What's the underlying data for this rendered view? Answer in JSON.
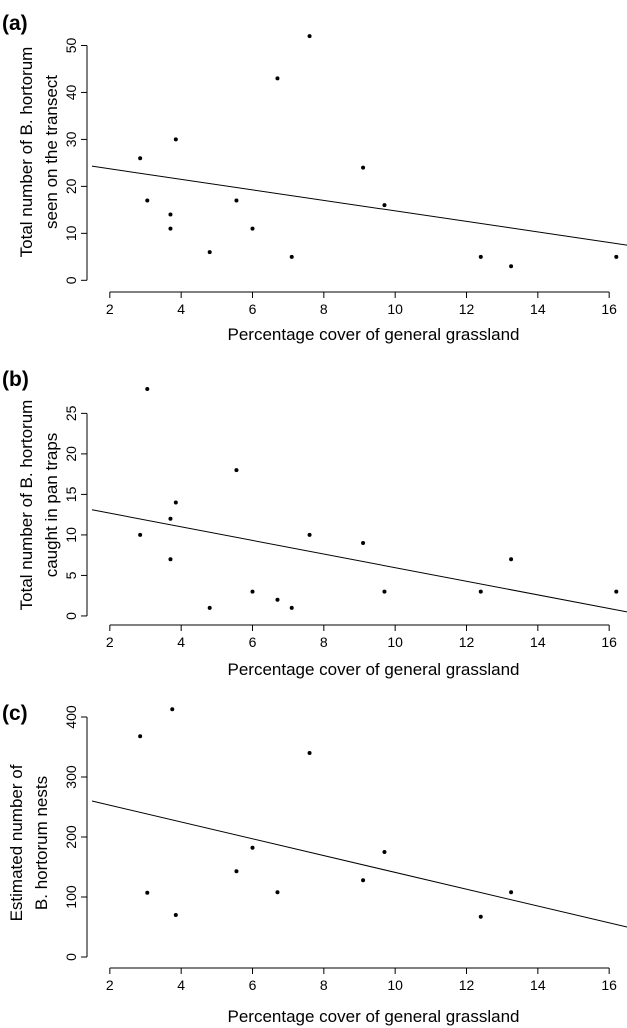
{
  "chart_data": [
    {
      "type": "scatter",
      "panel_label": "(a)",
      "xlabel": "Percentage cover of general grassland",
      "ylabel_lines": [
        "Total number of B. hortorum",
        "seen on the transect"
      ],
      "xlim": [
        1.5,
        16.5
      ],
      "ylim": [
        -1,
        55
      ],
      "x_ticks": [
        2,
        4,
        6,
        8,
        10,
        12,
        14,
        16
      ],
      "y_ticks": [
        0,
        10,
        20,
        30,
        40,
        50
      ],
      "points": [
        {
          "x": 2.85,
          "y": 26
        },
        {
          "x": 3.05,
          "y": 17
        },
        {
          "x": 3.7,
          "y": 14
        },
        {
          "x": 3.7,
          "y": 11
        },
        {
          "x": 3.85,
          "y": 30
        },
        {
          "x": 4.8,
          "y": 6
        },
        {
          "x": 5.55,
          "y": 17
        },
        {
          "x": 6.0,
          "y": 11
        },
        {
          "x": 6.7,
          "y": 43
        },
        {
          "x": 7.1,
          "y": 5
        },
        {
          "x": 7.6,
          "y": 52
        },
        {
          "x": 9.1,
          "y": 24
        },
        {
          "x": 9.7,
          "y": 16
        },
        {
          "x": 12.4,
          "y": 5
        },
        {
          "x": 13.25,
          "y": 3
        },
        {
          "x": 16.2,
          "y": 5
        }
      ],
      "fit_line": [
        {
          "x": 1.5,
          "y": 24.3
        },
        {
          "x": 16.5,
          "y": 7.5
        }
      ]
    },
    {
      "type": "scatter",
      "panel_label": "(b)",
      "xlabel": "Percentage cover of general grassland",
      "ylabel_lines": [
        "Total number of B. hortorum",
        "caught in pan traps"
      ],
      "xlim": [
        1.5,
        16.5
      ],
      "ylim": [
        -0.5,
        28.5
      ],
      "x_ticks": [
        2,
        4,
        6,
        8,
        10,
        12,
        14,
        16
      ],
      "y_ticks": [
        0,
        5,
        10,
        15,
        20,
        25
      ],
      "points": [
        {
          "x": 2.85,
          "y": 10
        },
        {
          "x": 3.05,
          "y": 28
        },
        {
          "x": 3.7,
          "y": 12
        },
        {
          "x": 3.7,
          "y": 7
        },
        {
          "x": 3.85,
          "y": 14
        },
        {
          "x": 4.8,
          "y": 1
        },
        {
          "x": 5.55,
          "y": 18
        },
        {
          "x": 6.0,
          "y": 3
        },
        {
          "x": 6.7,
          "y": 2
        },
        {
          "x": 7.1,
          "y": 1
        },
        {
          "x": 7.6,
          "y": 10
        },
        {
          "x": 9.1,
          "y": 9
        },
        {
          "x": 9.7,
          "y": 3
        },
        {
          "x": 12.4,
          "y": 3
        },
        {
          "x": 13.25,
          "y": 7
        },
        {
          "x": 16.2,
          "y": 3
        }
      ],
      "fit_line": [
        {
          "x": 1.5,
          "y": 13.1
        },
        {
          "x": 16.5,
          "y": 0.5
        }
      ]
    },
    {
      "type": "scatter",
      "panel_label": "(c)",
      "xlabel": "Percentage cover of general grassland",
      "ylabel_lines": [
        "Estimated number of",
        "B. hortorum nests"
      ],
      "xlim": [
        1.5,
        16.5
      ],
      "ylim": [
        -10,
        420
      ],
      "x_ticks": [
        2,
        4,
        6,
        8,
        10,
        12,
        14,
        16
      ],
      "y_ticks": [
        0,
        100,
        200,
        300,
        400
      ],
      "points": [
        {
          "x": 2.85,
          "y": 368
        },
        {
          "x": 3.05,
          "y": 107
        },
        {
          "x": 3.75,
          "y": 413
        },
        {
          "x": 3.85,
          "y": 70
        },
        {
          "x": 5.55,
          "y": 143
        },
        {
          "x": 6.0,
          "y": 182
        },
        {
          "x": 6.7,
          "y": 108
        },
        {
          "x": 7.6,
          "y": 340
        },
        {
          "x": 9.1,
          "y": 128
        },
        {
          "x": 9.7,
          "y": 175
        },
        {
          "x": 12.4,
          "y": 67
        },
        {
          "x": 13.25,
          "y": 108
        }
      ],
      "fit_line": [
        {
          "x": 1.5,
          "y": 260
        },
        {
          "x": 16.5,
          "y": 50
        }
      ]
    }
  ]
}
